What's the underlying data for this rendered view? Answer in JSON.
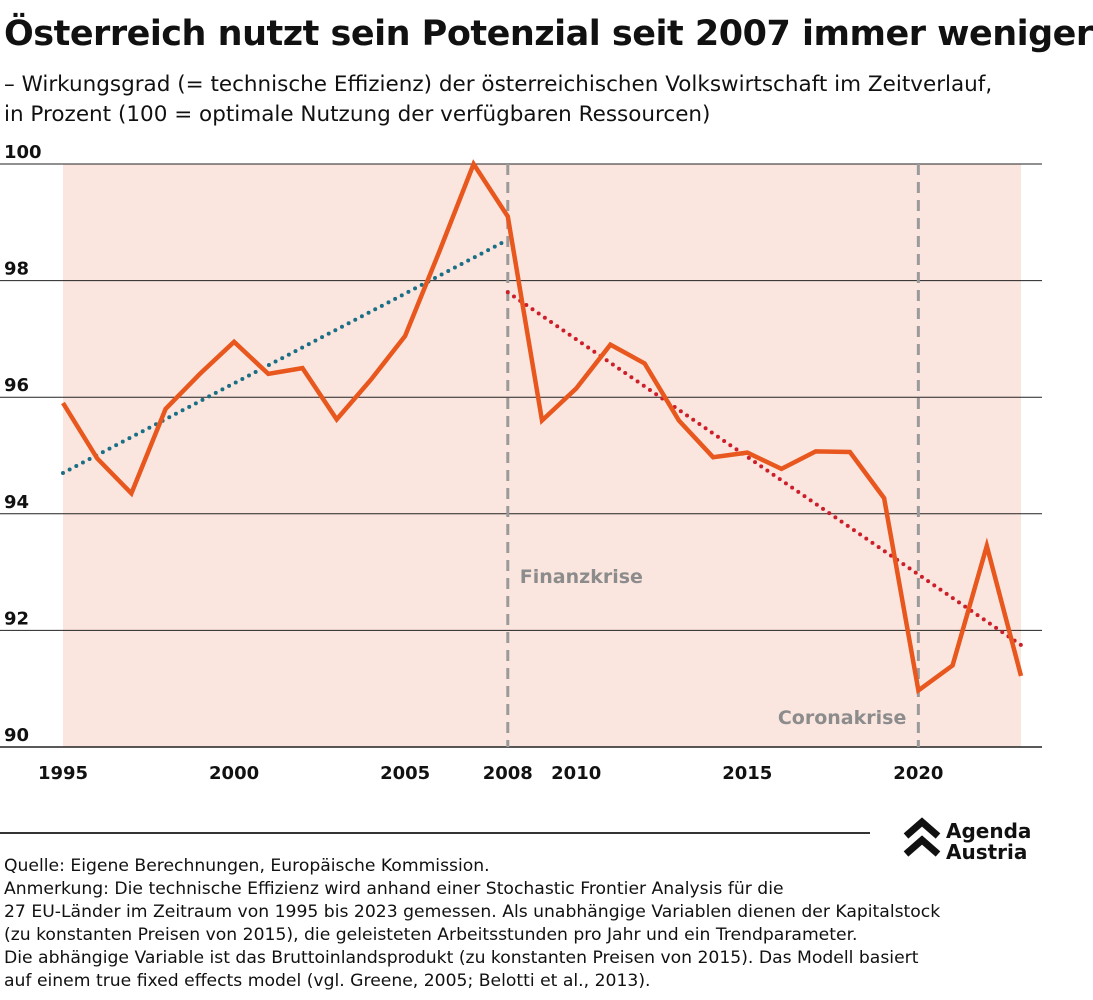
{
  "header": {
    "title": "Österreich nutzt sein Potenzial seit 2007 immer weniger",
    "subtitle": "– Wirkungsgrad (= technische Effizienz) der österreichischen Volkswirtschaft im Zeitverlauf,\nin Prozent (100 = optimale Nutzung der verfügbaren Ressourcen)"
  },
  "chart_data": {
    "type": "line",
    "title": "",
    "xlabel": "",
    "ylabel": "",
    "xlim": [
      1995,
      2023
    ],
    "ylim": [
      90,
      100
    ],
    "yticks": [
      90,
      92,
      94,
      96,
      98,
      100
    ],
    "xticks": [
      1995,
      2000,
      2005,
      2008,
      2010,
      2015,
      2020
    ],
    "grid": "horizontal",
    "series": [
      {
        "color": "#e8571e",
        "x": [
          1995,
          1996,
          1997,
          1998,
          1999,
          2000,
          2001,
          2002,
          2003,
          2004,
          2005,
          2006,
          2007,
          2008,
          2009,
          2010,
          2011,
          2012,
          2013,
          2014,
          2015,
          2016,
          2017,
          2018,
          2019,
          2020,
          2021,
          2022,
          2023
        ],
        "y": [
          95.9,
          94.95,
          94.35,
          95.8,
          96.4,
          96.95,
          96.4,
          96.5,
          95.62,
          96.3,
          97.05,
          98.5,
          100.0,
          99.1,
          95.6,
          96.15,
          96.9,
          96.58,
          95.6,
          94.97,
          95.05,
          94.77,
          95.07,
          95.06,
          94.27,
          90.97,
          91.4,
          93.45,
          91.22
        ]
      }
    ],
    "trendlines": [
      {
        "color": "#1a6e85",
        "x": [
          1995,
          2008
        ],
        "y": [
          94.7,
          98.7
        ]
      },
      {
        "color": "#cc1f2a",
        "x": [
          2008,
          2023
        ],
        "y": [
          97.8,
          91.75
        ]
      }
    ],
    "shaded_band": {
      "from": 1995,
      "to": 2023,
      "color": "#fbe6df"
    },
    "annotations": [
      {
        "label": "Finanzkrise",
        "x": 2008
      },
      {
        "label": "Coronakrise",
        "x": 2020
      }
    ]
  },
  "footer": {
    "source": "Quelle: Eigene Berechnungen, Europäische Kommission.",
    "note_lines": [
      "Anmerkung: Die technische Effizienz wird anhand einer Stochastic Frontier Analysis für die",
      "27 EU-Länder im Zeitraum von 1995 bis 2023 gemessen. Als unabhängige Variablen dienen der Kapitalstock",
      "(zu konstanten Preisen von 2015), die geleisteten Arbeitsstunden pro Jahr und ein Trendparameter.",
      "Die abhängige Variable ist das Bruttoinlandsprodukt (zu konstanten Preisen von 2015). Das Modell basiert",
      "auf einem true fixed effects model (vgl. Greene, 2005; Belotti et al., 2013)."
    ],
    "logo": {
      "line1": "Agenda",
      "line2": "Austria"
    }
  }
}
